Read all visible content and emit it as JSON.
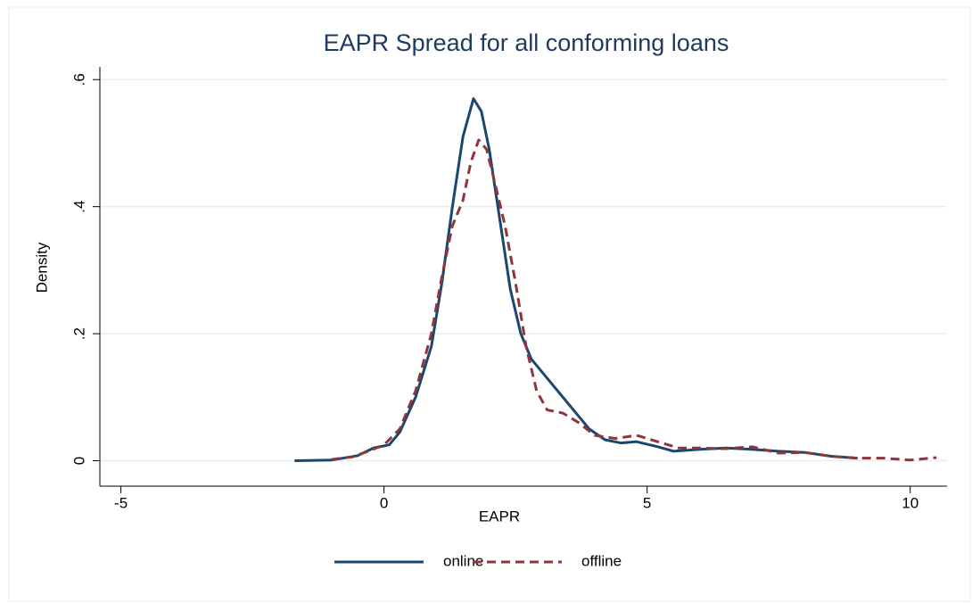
{
  "chart_data": {
    "type": "line",
    "title": "EAPR Spread for all conforming loans",
    "x_label": "EAPR",
    "y_label": "Density",
    "xlim": [
      -5.4,
      10.7
    ],
    "ylim": [
      -0.04,
      0.62
    ],
    "xticks": [
      -5,
      0,
      5,
      10
    ],
    "yticks": [
      0,
      {
        "value": 0.2,
        "label": ".2"
      },
      {
        "value": 0.4,
        "label": ".4"
      },
      {
        "value": 0.6,
        "label": ".6"
      }
    ],
    "grid": true,
    "legend": "bottom",
    "series": [
      {
        "name": "online",
        "color": "#1a476f",
        "dash": "solid",
        "x": [
          -1.7,
          -1,
          -0.5,
          -0.2,
          0.1,
          0.3,
          0.6,
          0.9,
          1.1,
          1.3,
          1.5,
          1.7,
          1.85,
          2.0,
          2.2,
          2.4,
          2.6,
          2.8,
          3.0,
          3.3,
          3.6,
          3.9,
          4.2,
          4.5,
          4.8,
          5.2,
          5.5,
          6,
          6.5,
          7,
          7.5,
          8,
          8.5,
          9
        ],
        "values": [
          0,
          0.001,
          0.008,
          0.02,
          0.025,
          0.045,
          0.1,
          0.18,
          0.28,
          0.4,
          0.51,
          0.57,
          0.55,
          0.49,
          0.38,
          0.27,
          0.2,
          0.16,
          0.14,
          0.11,
          0.08,
          0.05,
          0.033,
          0.028,
          0.03,
          0.022,
          0.015,
          0.018,
          0.02,
          0.018,
          0.015,
          0.013,
          0.007,
          0.004
        ]
      },
      {
        "name": "offline",
        "color": "#90353b",
        "dash": "dashed",
        "x": [
          -1.0,
          -0.6,
          -0.3,
          0,
          0.3,
          0.6,
          0.9,
          1.1,
          1.3,
          1.5,
          1.65,
          1.8,
          1.95,
          2.1,
          2.3,
          2.5,
          2.7,
          2.9,
          3.1,
          3.4,
          3.7,
          4.0,
          4.4,
          4.8,
          5.2,
          5.6,
          6,
          6.5,
          7,
          7.5,
          8,
          8.5,
          9,
          9.5,
          10,
          10.5
        ],
        "values": [
          0.002,
          0.006,
          0.015,
          0.025,
          0.05,
          0.11,
          0.2,
          0.29,
          0.37,
          0.41,
          0.47,
          0.505,
          0.49,
          0.44,
          0.37,
          0.28,
          0.18,
          0.11,
          0.08,
          0.075,
          0.06,
          0.04,
          0.035,
          0.04,
          0.03,
          0.02,
          0.02,
          0.019,
          0.022,
          0.012,
          0.013,
          0.007,
          0.004,
          0.004,
          0.001,
          0.005
        ]
      }
    ]
  }
}
